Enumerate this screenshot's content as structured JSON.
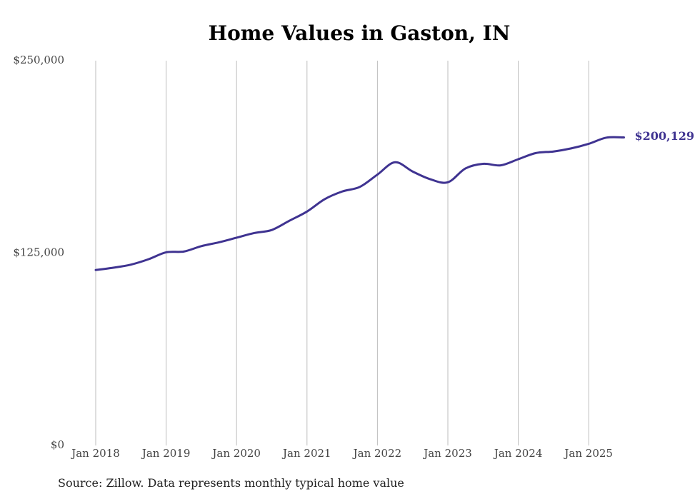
{
  "chart_data": {
    "type": "line",
    "title": "Home Values in Gaston, IN",
    "xlabel": "",
    "ylabel": "",
    "ylim": [
      0,
      250000
    ],
    "y_ticks": [
      "$0",
      "$125,000",
      "$250,000"
    ],
    "y_tick_values": [
      0,
      125000,
      250000
    ],
    "x_ticks": [
      "Jan 2018",
      "Jan 2019",
      "Jan 2020",
      "Jan 2021",
      "Jan 2022",
      "Jan 2023",
      "Jan 2024",
      "Jan 2025"
    ],
    "x_tick_values": [
      2018.0,
      2019.0,
      2020.0,
      2021.0,
      2022.0,
      2023.0,
      2024.0,
      2025.0
    ],
    "grid": "vertical",
    "line_color": "#3f3391",
    "end_label": "$200,129",
    "series": [
      {
        "name": "",
        "x": [
          2018.0,
          2018.25,
          2018.5,
          2018.75,
          2019.0,
          2019.25,
          2019.5,
          2019.75,
          2020.0,
          2020.25,
          2020.5,
          2020.75,
          2021.0,
          2021.25,
          2021.5,
          2021.75,
          2022.0,
          2022.25,
          2022.5,
          2022.75,
          2023.0,
          2023.25,
          2023.5,
          2023.75,
          2024.0,
          2024.25,
          2024.5,
          2024.75,
          2025.0,
          2025.25,
          2025.5
        ],
        "y": [
          114000,
          115500,
          117500,
          121000,
          125500,
          126000,
          129500,
          132000,
          135000,
          138000,
          140000,
          146000,
          152000,
          160000,
          165000,
          168000,
          176000,
          184000,
          178000,
          173000,
          171000,
          180000,
          183000,
          182000,
          186000,
          190000,
          191000,
          193000,
          196000,
          200000,
          200129
        ]
      }
    ]
  },
  "footer": {
    "source": "Source: Zillow. Data represents monthly typical home value"
  }
}
